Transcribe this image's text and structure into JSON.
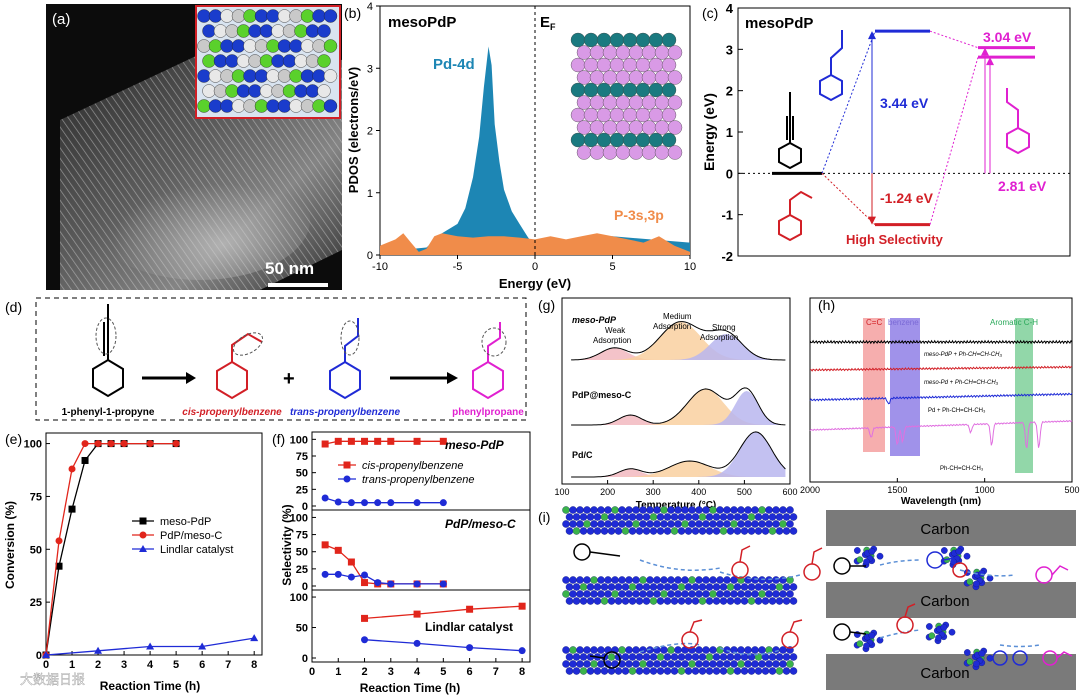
{
  "panels": {
    "a": {
      "label": "(a)",
      "scale_bar": "50 nm"
    },
    "b": {
      "label": "(b)",
      "title": "mesoPdP",
      "ef": "E",
      "ef_sub": "F",
      "pd_label": "Pd-4d",
      "p_label": "P-3s,3p"
    },
    "c": {
      "label": "(c)",
      "title": "mesoPdP",
      "gap1": "3.44 eV",
      "gap2": "-1.24 eV",
      "gap3": "3.04 eV",
      "gap4": "2.81 eV",
      "high_sel": "High Selectivity"
    },
    "d": {
      "label": "(d)",
      "names": [
        "1-phenyl-1-propyne",
        "cis-propenylbenzene",
        "trans-propenylbenzene",
        "phenylpropane"
      ],
      "plus": "+"
    },
    "e": {
      "label": "(e)"
    },
    "f": {
      "label": "(f)"
    },
    "g": {
      "label": "(g)",
      "trace_labels": [
        "meso-PdP",
        "PdP@meso-C",
        "Pd/C"
      ],
      "annotations": [
        "Weak Adsorption",
        "Medium Adsorption",
        "Strong Adsorption"
      ]
    },
    "h": {
      "label": "(h)",
      "bands": [
        "C=C",
        "benzene",
        "Aromatic C-H"
      ],
      "trace_labels": [
        "meso-PdP + Ph-CH=CH-CH₃",
        "meso-Pd + Ph-CH=CH-CH₃",
        "Pd + Ph-CH=CH-CH₃",
        "Ph-CH=CH-CH₃"
      ]
    },
    "i": {
      "label": "(i)",
      "carbon": "Carbon"
    }
  },
  "watermark": "大数据日报",
  "colors": {
    "black": "#000000",
    "red": "#e1251b",
    "blue": "#1f2bd6",
    "magenta": "#e020d0",
    "pd4d": "#1d86b4",
    "p3s": "#f08c4a"
  },
  "chart_data": [
    {
      "type": "area",
      "id": "b",
      "title": "mesoPdP",
      "xlabel": "Energy (eV)",
      "ylabel": "PDOS (electrons/eV)",
      "xlim": [
        -10,
        10
      ],
      "ylim": [
        0,
        4
      ],
      "xticks": [
        -10,
        -5,
        0,
        5,
        10
      ],
      "yticks": [
        0,
        1,
        2,
        3,
        4
      ],
      "series": [
        {
          "name": "Pd-4d",
          "x": [
            -10,
            -7,
            -6,
            -5,
            -4.5,
            -4,
            -3.6,
            -3.3,
            -3,
            -2.8,
            -2.6,
            -2.3,
            -2,
            -1.5,
            -1,
            -0.5,
            0,
            5,
            10
          ],
          "values": [
            0.05,
            0.12,
            0.35,
            0.5,
            0.75,
            1.25,
            1.9,
            2.7,
            3.35,
            3.05,
            2.1,
            1.5,
            1.05,
            0.7,
            0.5,
            0.3,
            0.12,
            0.3,
            0.2
          ]
        },
        {
          "name": "P-3s,3p",
          "x": [
            -10,
            -9,
            -8.5,
            -8,
            -7.5,
            -7,
            -6.5,
            -6,
            -5,
            -4,
            -3,
            -2,
            -1,
            0,
            1,
            2,
            3,
            4,
            5,
            6,
            7,
            8,
            9,
            10
          ],
          "values": [
            0.15,
            0.25,
            0.35,
            0.2,
            0.05,
            0.1,
            0.3,
            0.35,
            0.3,
            0.28,
            0.3,
            0.3,
            0.28,
            0.25,
            0.3,
            0.25,
            0.3,
            0.35,
            0.3,
            0.25,
            0.2,
            0.3,
            0.15,
            0.05
          ]
        }
      ]
    },
    {
      "type": "diagram",
      "id": "c",
      "title": "mesoPdP",
      "ylabel": "Energy (eV)",
      "ylim": [
        -2,
        4
      ],
      "yticks": [
        -2,
        -1,
        0,
        1,
        2,
        3,
        4
      ],
      "levels": [
        {
          "name": "trans",
          "y": 3.44
        },
        {
          "name": "cis",
          "y": -1.24
        },
        {
          "name": "propane-high",
          "y": 3.04
        },
        {
          "name": "propane-low",
          "y": 2.81
        }
      ]
    },
    {
      "type": "line",
      "id": "e",
      "xlabel": "Reaction Time (h)",
      "ylabel": "Conversion (%)",
      "xlim": [
        0,
        8.3
      ],
      "ylim": [
        0,
        105
      ],
      "xticks": [
        0,
        1,
        2,
        3,
        4,
        5,
        6,
        7,
        8
      ],
      "yticks": [
        0,
        25,
        50,
        75,
        100
      ],
      "series": [
        {
          "name": "meso-PdP",
          "color": "#000000",
          "x": [
            0,
            0.5,
            1,
            1.5,
            2,
            2.5,
            3,
            4,
            5
          ],
          "values": [
            0,
            42,
            69,
            92,
            100,
            100,
            100,
            100,
            100
          ]
        },
        {
          "name": "PdP/meso-C",
          "color": "#e1251b",
          "x": [
            0,
            0.5,
            1,
            1.5,
            2,
            2.5,
            3,
            4,
            5
          ],
          "values": [
            0,
            54,
            88,
            100,
            100,
            100,
            100,
            100,
            100
          ]
        },
        {
          "name": "Lindlar catalyst",
          "color": "#1f2bd6",
          "x": [
            0,
            2,
            4,
            6,
            8
          ],
          "values": [
            0,
            2,
            4,
            4,
            8
          ]
        }
      ]
    },
    {
      "type": "line",
      "id": "f",
      "xlabel": "Reaction Time (h)",
      "ylabel": "Selectivity (%)",
      "subplots": [
        {
          "title": "meso-PdP",
          "xlim": [
            0,
            8.3
          ],
          "ylim": [
            0,
            105
          ],
          "yticks": [
            0,
            25,
            50,
            75,
            100
          ],
          "series": [
            {
              "name": "cis-propenylbenzene",
              "color": "#e1251b",
              "x": [
                0.5,
                1,
                1.5,
                2,
                2.5,
                3,
                4,
                5
              ],
              "values": [
                93,
                97,
                97,
                97,
                97,
                97,
                97,
                97
              ]
            },
            {
              "name": "trans-propenylbenzene",
              "color": "#1f2bd6",
              "x": [
                0.5,
                1,
                1.5,
                2,
                2.5,
                3,
                4,
                5
              ],
              "values": [
                12,
                6,
                5,
                5,
                5,
                5,
                5,
                5
              ]
            }
          ]
        },
        {
          "title": "PdP/meso-C",
          "xlim": [
            0,
            8.3
          ],
          "ylim": [
            0,
            105
          ],
          "yticks": [
            0,
            25,
            50,
            75,
            100
          ],
          "series": [
            {
              "name": "cis-propenylbenzene",
              "color": "#e1251b",
              "x": [
                0.5,
                1,
                1.5,
                2,
                2.5,
                3,
                4,
                5
              ],
              "values": [
                60,
                52,
                35,
                5,
                3,
                3,
                3,
                3
              ]
            },
            {
              "name": "trans-propenylbenzene",
              "color": "#1f2bd6",
              "x": [
                0.5,
                1,
                1.5,
                2,
                2.5,
                3,
                4,
                5
              ],
              "values": [
                17,
                17,
                13,
                16,
                5,
                3,
                3,
                3
              ]
            }
          ]
        },
        {
          "title": "Lindlar catalyst",
          "xlim": [
            0,
            8.3
          ],
          "ylim": [
            0,
            105
          ],
          "xticks": [
            0,
            1,
            2,
            3,
            4,
            5,
            6,
            7,
            8
          ],
          "yticks": [
            0,
            50,
            100
          ],
          "series": [
            {
              "name": "cis-propenylbenzene",
              "color": "#e1251b",
              "x": [
                2,
                4,
                6,
                8
              ],
              "values": [
                65,
                72,
                80,
                85
              ]
            },
            {
              "name": "trans-propenylbenzene",
              "color": "#1f2bd6",
              "x": [
                2,
                4,
                6,
                8
              ],
              "values": [
                30,
                24,
                17,
                12
              ]
            }
          ]
        }
      ]
    },
    {
      "type": "area",
      "id": "g",
      "xlabel": "Temperature (°C)",
      "xlim": [
        100,
        600
      ],
      "xticks": [
        100,
        200,
        300,
        400,
        500,
        600
      ]
    },
    {
      "type": "line",
      "id": "h",
      "xlabel": "Wavelength (nm)",
      "xlim": [
        2000,
        500
      ],
      "xticks": [
        2000,
        1500,
        1000,
        500
      ]
    }
  ]
}
